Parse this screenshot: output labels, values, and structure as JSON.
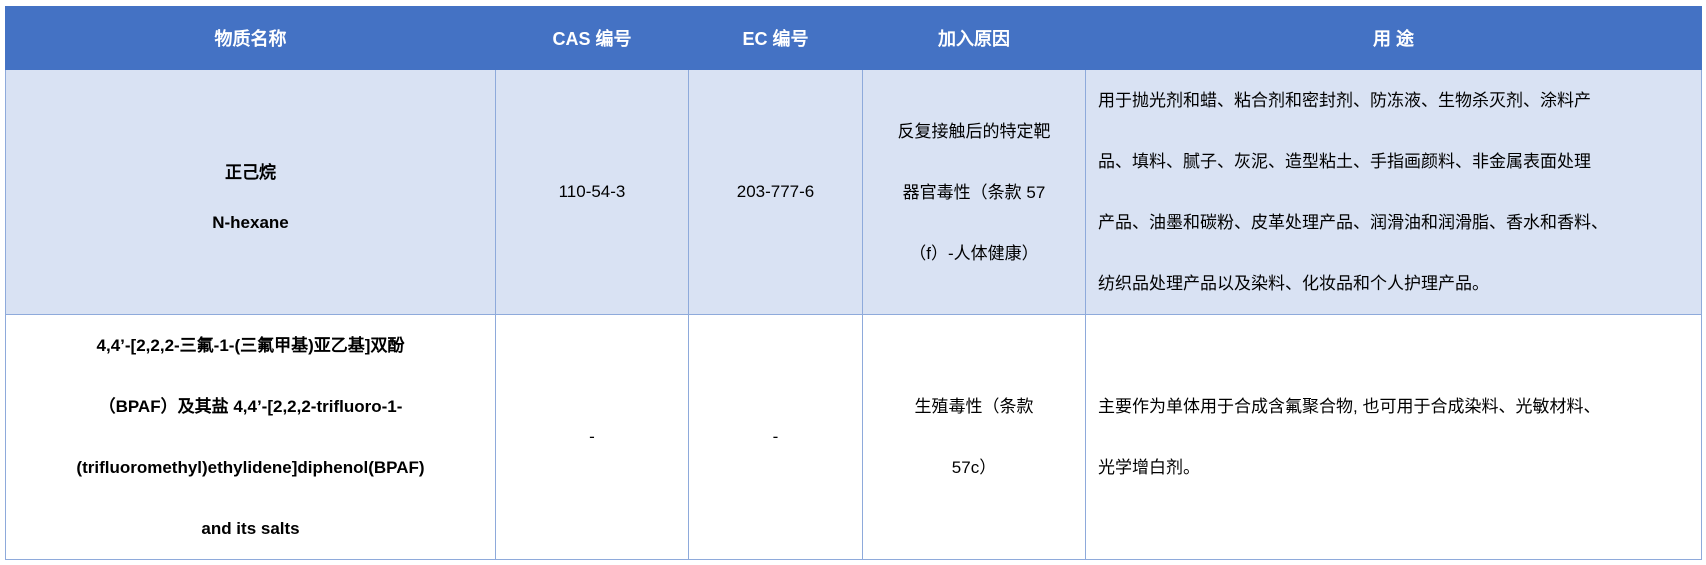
{
  "header": {
    "substance_name": "物质名称",
    "cas_no": "CAS 编号",
    "ec_no": "EC 编号",
    "reason": "加入原因",
    "uses": "用 途"
  },
  "rows": [
    {
      "name_lines": [
        "正己烷",
        "N-hexane"
      ],
      "cas": "110-54-3",
      "ec": "203-777-6",
      "reason_lines": [
        "反复接触后的特定靶",
        "器官毒性（条款 57",
        "（f）-人体健康）"
      ],
      "uses_lines": [
        "用于抛光剂和蜡、粘合剂和密封剂、防冻液、生物杀灭剂、涂料产",
        "品、填料、腻子、灰泥、造型粘土、手指画颜料、非金属表面处理",
        "产品、油墨和碳粉、皮革处理产品、润滑油和润滑脂、香水和香料、",
        "纺织品处理产品以及染料、化妆品和个人护理产品。"
      ]
    },
    {
      "name_lines": [
        "4,4’-[2,2,2-三氟-1-(三氟甲基)亚乙基]双酚",
        "（BPAF）及其盐 4,4’-[2,2,2-trifluoro-1-",
        "(trifluoromethyl)ethylidene]diphenol(BPAF)",
        "and its salts"
      ],
      "cas": "-",
      "ec": "-",
      "reason_lines": [
        "生殖毒性（条款",
        "57c）"
      ],
      "uses_lines": [
        "主要作为单体用于合成含氟聚合物, 也可用于合成染料、光敏材料、",
        "光学增白剂。"
      ]
    }
  ]
}
